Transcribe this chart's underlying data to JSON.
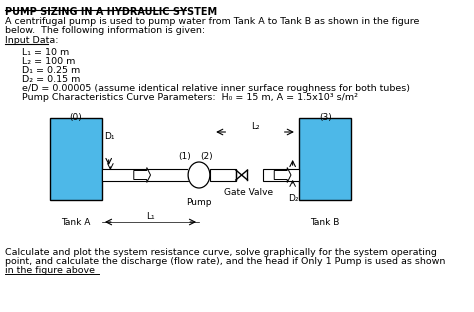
{
  "title": "Pump Sizing in a Hydraulic System",
  "intro_line1": "A centrifugal pump is used to pump water from Tank A to Tank B as shown in the figure",
  "intro_line2": "below.  The following information is given:",
  "input_label": "Input Data:",
  "params": [
    "L₁ = 10 m",
    "L₂ = 100 m",
    "D₁ = 0.25 m",
    "D₂ = 0.15 m",
    "e/D = 0.00005 (assume identical relative inner surface roughness for both tubes)",
    "Pump Characteristics Curve Parameters:  H₀ = 15 m, A = 1.5x10³ s/m²"
  ],
  "conclusion_line1": "Calculate and plot the system resistance curve, solve graphically for the system operating",
  "conclusion_line2": "point, and calculate the discharge (flow rate), and the head if Only 1 Pump is used as shown",
  "conclusion_line3": "in the figure above",
  "tank_color": "#4db8e8",
  "bg_color": "#ffffff",
  "text_color": "#000000",
  "title_fontsize": 7.0,
  "body_fontsize": 6.8,
  "param_fontsize": 6.8,
  "diagram_fontsize": 6.5
}
